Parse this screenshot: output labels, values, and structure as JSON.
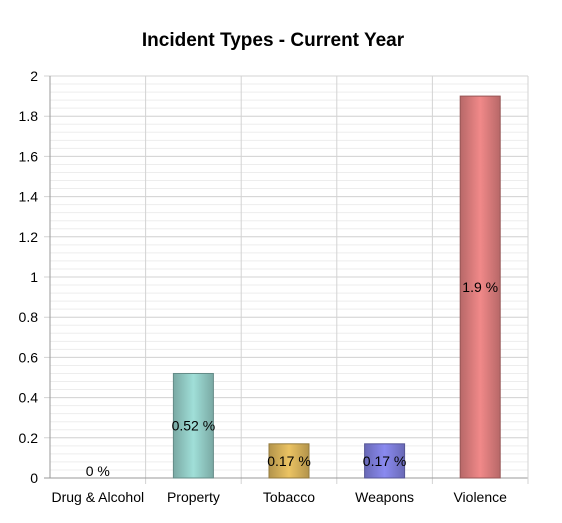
{
  "chart_data": {
    "type": "bar",
    "title": "Incident Types - Current Year",
    "categories": [
      "Drug & Alcohol",
      "Property",
      "Tobacco",
      "Weapons",
      "Violence"
    ],
    "values": [
      0,
      0.52,
      0.17,
      0.17,
      1.9
    ],
    "data_labels": [
      "0 %",
      "0.52 %",
      "0.17 %",
      "0.17 %",
      "1.9 %"
    ],
    "y_ticks": [
      "0",
      "0.2",
      "0.4",
      "0.6",
      "0.8",
      "1",
      "1.2",
      "1.4",
      "1.6",
      "1.8",
      "2"
    ],
    "ylim": [
      0,
      2
    ],
    "xlabel": "",
    "ylabel": "",
    "grid": true,
    "legend": "none",
    "colors": [
      "#8fbcbb",
      "#8fc7c1",
      "#d2ae58",
      "#7b7bd6",
      "#d77a7a"
    ]
  }
}
